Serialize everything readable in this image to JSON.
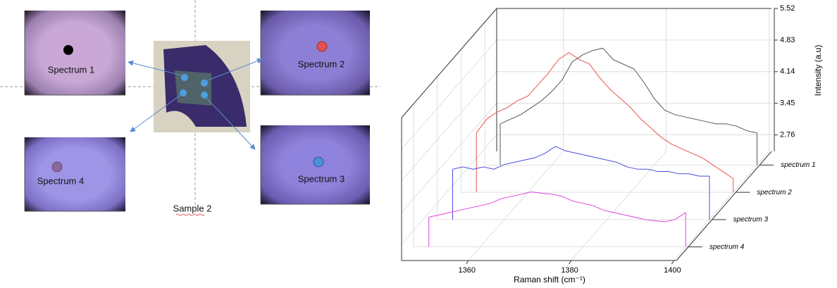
{
  "panels": {
    "images": [
      {
        "label": "Spectrum 1"
      },
      {
        "label": "Spectrum 2"
      },
      {
        "label": "Spectrum 3"
      },
      {
        "label": "Spectrum 4"
      }
    ],
    "sample_label": "Sample 2"
  },
  "chart_data": {
    "type": "waterfall3d",
    "xlabel": "Raman shift (cm⁻¹)",
    "ylabel": "Intensity (a.u)",
    "x": [
      1350,
      1352,
      1354,
      1356,
      1358,
      1360,
      1362,
      1364,
      1366,
      1368,
      1370,
      1372,
      1374,
      1376,
      1378,
      1380,
      1382,
      1384,
      1386,
      1388,
      1390,
      1392,
      1394,
      1396,
      1398,
      1400
    ],
    "xlim": [
      1347,
      1400.5
    ],
    "xticks": [
      1360,
      1380,
      1400
    ],
    "ylim": [
      2.4,
      5.52
    ],
    "yticks": [
      2.76,
      3.45,
      4.14,
      4.83,
      5.52
    ],
    "grid": true,
    "series": [
      {
        "name": "spectrum 1",
        "color": "#555555",
        "values": [
          3.3,
          3.4,
          3.5,
          3.65,
          3.8,
          4.0,
          4.25,
          4.65,
          4.8,
          4.9,
          4.95,
          4.7,
          4.6,
          4.5,
          4.2,
          3.85,
          3.6,
          3.5,
          3.45,
          3.4,
          3.35,
          3.3,
          3.3,
          3.25,
          3.15,
          3.1
        ]
      },
      {
        "name": "spectrum 2",
        "color": "#e8564c",
        "values": [
          3.7,
          4.0,
          4.15,
          4.25,
          4.4,
          4.5,
          4.75,
          5.0,
          5.3,
          5.45,
          5.3,
          5.2,
          4.9,
          4.65,
          4.45,
          4.25,
          4.0,
          3.8,
          3.6,
          3.45,
          3.35,
          3.25,
          3.15,
          3.0,
          2.85,
          2.7
        ]
      },
      {
        "name": "spectrum 3",
        "color": "#4a4ae0",
        "values": [
          3.5,
          3.55,
          3.5,
          3.55,
          3.5,
          3.6,
          3.65,
          3.7,
          3.75,
          3.85,
          4.0,
          3.9,
          3.85,
          3.8,
          3.75,
          3.7,
          3.65,
          3.55,
          3.5,
          3.5,
          3.45,
          3.45,
          3.4,
          3.4,
          3.35,
          3.35
        ]
      },
      {
        "name": "spectrum 4",
        "color": "#e040e0",
        "values": [
          3.05,
          3.1,
          3.15,
          3.2,
          3.25,
          3.3,
          3.35,
          3.45,
          3.5,
          3.55,
          3.6,
          3.57,
          3.55,
          3.5,
          3.4,
          3.35,
          3.3,
          3.2,
          3.15,
          3.1,
          3.05,
          3.0,
          2.97,
          2.95,
          3.0,
          3.15
        ]
      }
    ]
  }
}
